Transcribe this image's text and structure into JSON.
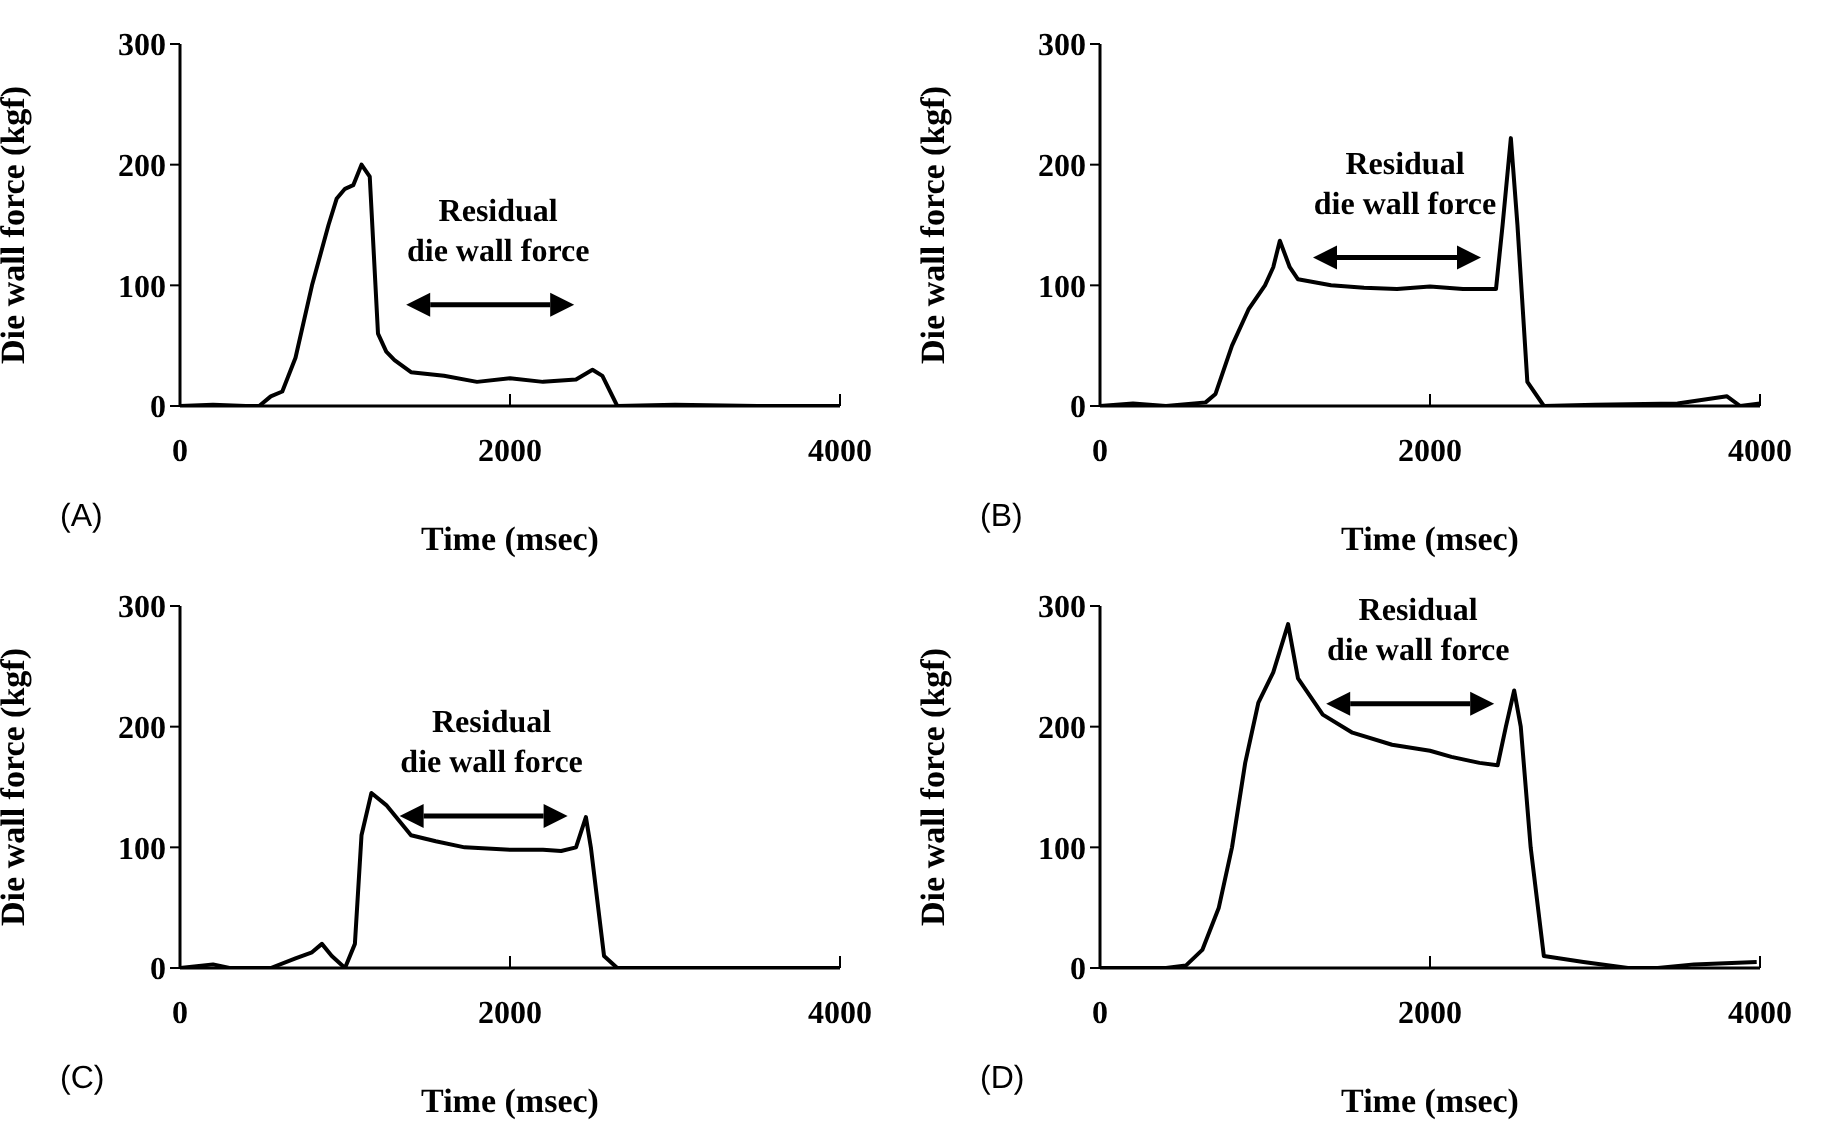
{
  "chart_data": [
    {
      "type": "line",
      "xlabel": "Time (msec)",
      "ylabel": "Die wall force (kgf)",
      "xlim": [
        0,
        4000
      ],
      "xticks": [
        0,
        2000,
        4000
      ],
      "ylim": [
        0,
        300
      ],
      "yticks": [
        0,
        100,
        200,
        300
      ],
      "marker": "none",
      "annotations": [
        "(A)",
        "Residual die wall force"
      ],
      "series": [
        {
          "color": "#000000",
          "x": [
            0,
            200,
            400,
            480,
            550,
            620,
            700,
            800,
            900,
            950,
            1000,
            1050,
            1100,
            1150,
            1200,
            1250,
            1300,
            1400,
            1600,
            1800,
            2000,
            2200,
            2400,
            2500,
            2560,
            2650,
            3000,
            3500,
            4000
          ],
          "values": [
            0,
            1,
            0,
            0,
            8,
            12,
            40,
            100,
            150,
            172,
            180,
            183,
            200,
            190,
            60,
            45,
            38,
            28,
            25,
            20,
            23,
            20,
            22,
            30,
            25,
            0,
            1,
            0,
            0
          ]
        }
      ]
    },
    {
      "type": "line",
      "xlabel": "Time (msec)",
      "ylabel": "Die wall force (kgf)",
      "xlim": [
        0,
        4000
      ],
      "xticks": [
        0,
        2000,
        4000
      ],
      "ylim": [
        0,
        300
      ],
      "yticks": [
        0,
        100,
        200,
        300
      ],
      "marker": "none",
      "annotations": [
        "(B)",
        "Residual die wall force"
      ],
      "series": [
        {
          "color": "#000000",
          "x": [
            0,
            200,
            400,
            640,
            700,
            800,
            900,
            1000,
            1050,
            1090,
            1150,
            1200,
            1400,
            1600,
            1800,
            2000,
            2200,
            2400,
            2440,
            2490,
            2530,
            2590,
            2690,
            3000,
            3500,
            3800,
            3880,
            4000
          ],
          "values": [
            0,
            2,
            0,
            3,
            10,
            50,
            80,
            100,
            115,
            137,
            115,
            105,
            100,
            98,
            97,
            99,
            97,
            97,
            150,
            222,
            150,
            20,
            0,
            1,
            2,
            8,
            0,
            2
          ]
        }
      ]
    },
    {
      "type": "line",
      "xlabel": "Time (msec)",
      "ylabel": "Die wall force (kgf)",
      "xlim": [
        0,
        4000
      ],
      "xticks": [
        0,
        2000,
        4000
      ],
      "ylim": [
        0,
        300
      ],
      "yticks": [
        0,
        100,
        200,
        300
      ],
      "marker": "none",
      "annotations": [
        "(C)",
        "Residual die wall force"
      ],
      "series": [
        {
          "color": "#000000",
          "x": [
            0,
            200,
            300,
            550,
            700,
            800,
            860,
            920,
            1000,
            1060,
            1100,
            1160,
            1250,
            1400,
            1550,
            1725,
            2000,
            2200,
            2310,
            2400,
            2460,
            2490,
            2570,
            2650,
            3000,
            3500,
            4000
          ],
          "values": [
            0,
            3,
            0,
            0,
            8,
            13,
            20,
            10,
            0,
            20,
            110,
            145,
            135,
            110,
            105,
            100,
            98,
            98,
            97,
            100,
            125,
            100,
            10,
            0,
            0,
            0,
            0
          ]
        }
      ]
    },
    {
      "type": "line",
      "xlabel": "Time (msec)",
      "ylabel": "Die wall force (kgf)",
      "xlim": [
        0,
        4000
      ],
      "xticks": [
        0,
        2000,
        4000
      ],
      "ylim": [
        0,
        300
      ],
      "yticks": [
        0,
        100,
        200,
        300
      ],
      "marker": "none",
      "annotations": [
        "(D)",
        "Residual die wall force"
      ],
      "series": [
        {
          "color": "#000000",
          "x": [
            0,
            400,
            520,
            620,
            720,
            800,
            880,
            960,
            1050,
            1140,
            1200,
            1350,
            1530,
            1770,
            2000,
            2130,
            2300,
            2410,
            2460,
            2510,
            2550,
            2610,
            2690,
            2930,
            3200,
            3380,
            3600,
            3980
          ],
          "values": [
            0,
            0,
            2,
            15,
            50,
            100,
            170,
            220,
            245,
            285,
            240,
            210,
            195,
            185,
            180,
            175,
            170,
            168,
            200,
            230,
            200,
            100,
            10,
            5,
            0,
            0,
            3,
            5
          ]
        }
      ]
    }
  ]
}
